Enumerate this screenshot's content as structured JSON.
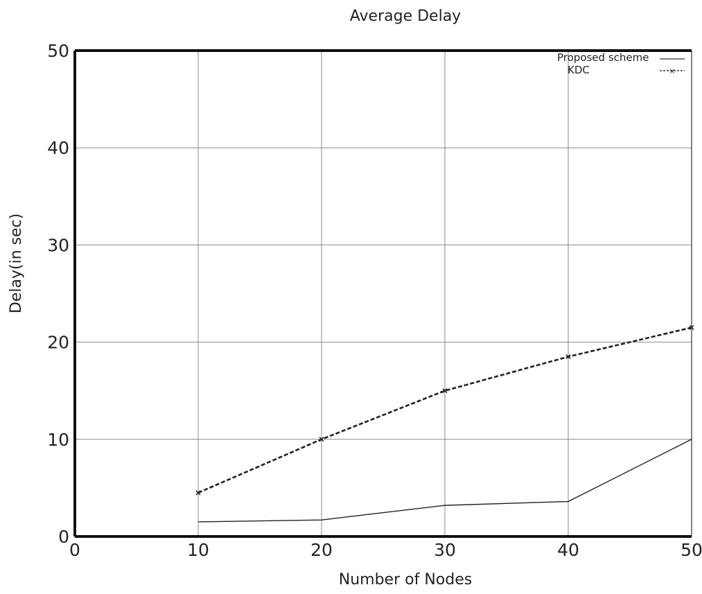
{
  "chart_data": {
    "type": "line",
    "title": "Average Delay",
    "xlabel": "Number of Nodes",
    "ylabel": "Delay(in sec)",
    "xlim": [
      0,
      50
    ],
    "ylim": [
      0,
      50
    ],
    "x_ticks": [
      0,
      10,
      20,
      30,
      40,
      50
    ],
    "y_ticks": [
      0,
      10,
      20,
      30,
      40,
      50
    ],
    "x_tick_labels": [
      "0",
      "10",
      "20",
      "30",
      "40",
      "50"
    ],
    "y_tick_labels": [
      "0",
      "10",
      "20",
      "30",
      "40",
      "50"
    ],
    "grid": true,
    "legend_position": "top-right",
    "x": [
      10,
      20,
      30,
      40,
      50
    ],
    "series": [
      {
        "name": "Proposed scheme",
        "style": "solid",
        "marker": "none",
        "color": "#222222",
        "values": [
          1.5,
          1.7,
          3.2,
          3.6,
          10.0
        ]
      },
      {
        "name": "KDC",
        "style": "dashed",
        "marker": "x",
        "color": "#222222",
        "values": [
          4.5,
          10.0,
          15.0,
          18.5,
          21.5
        ]
      }
    ]
  }
}
